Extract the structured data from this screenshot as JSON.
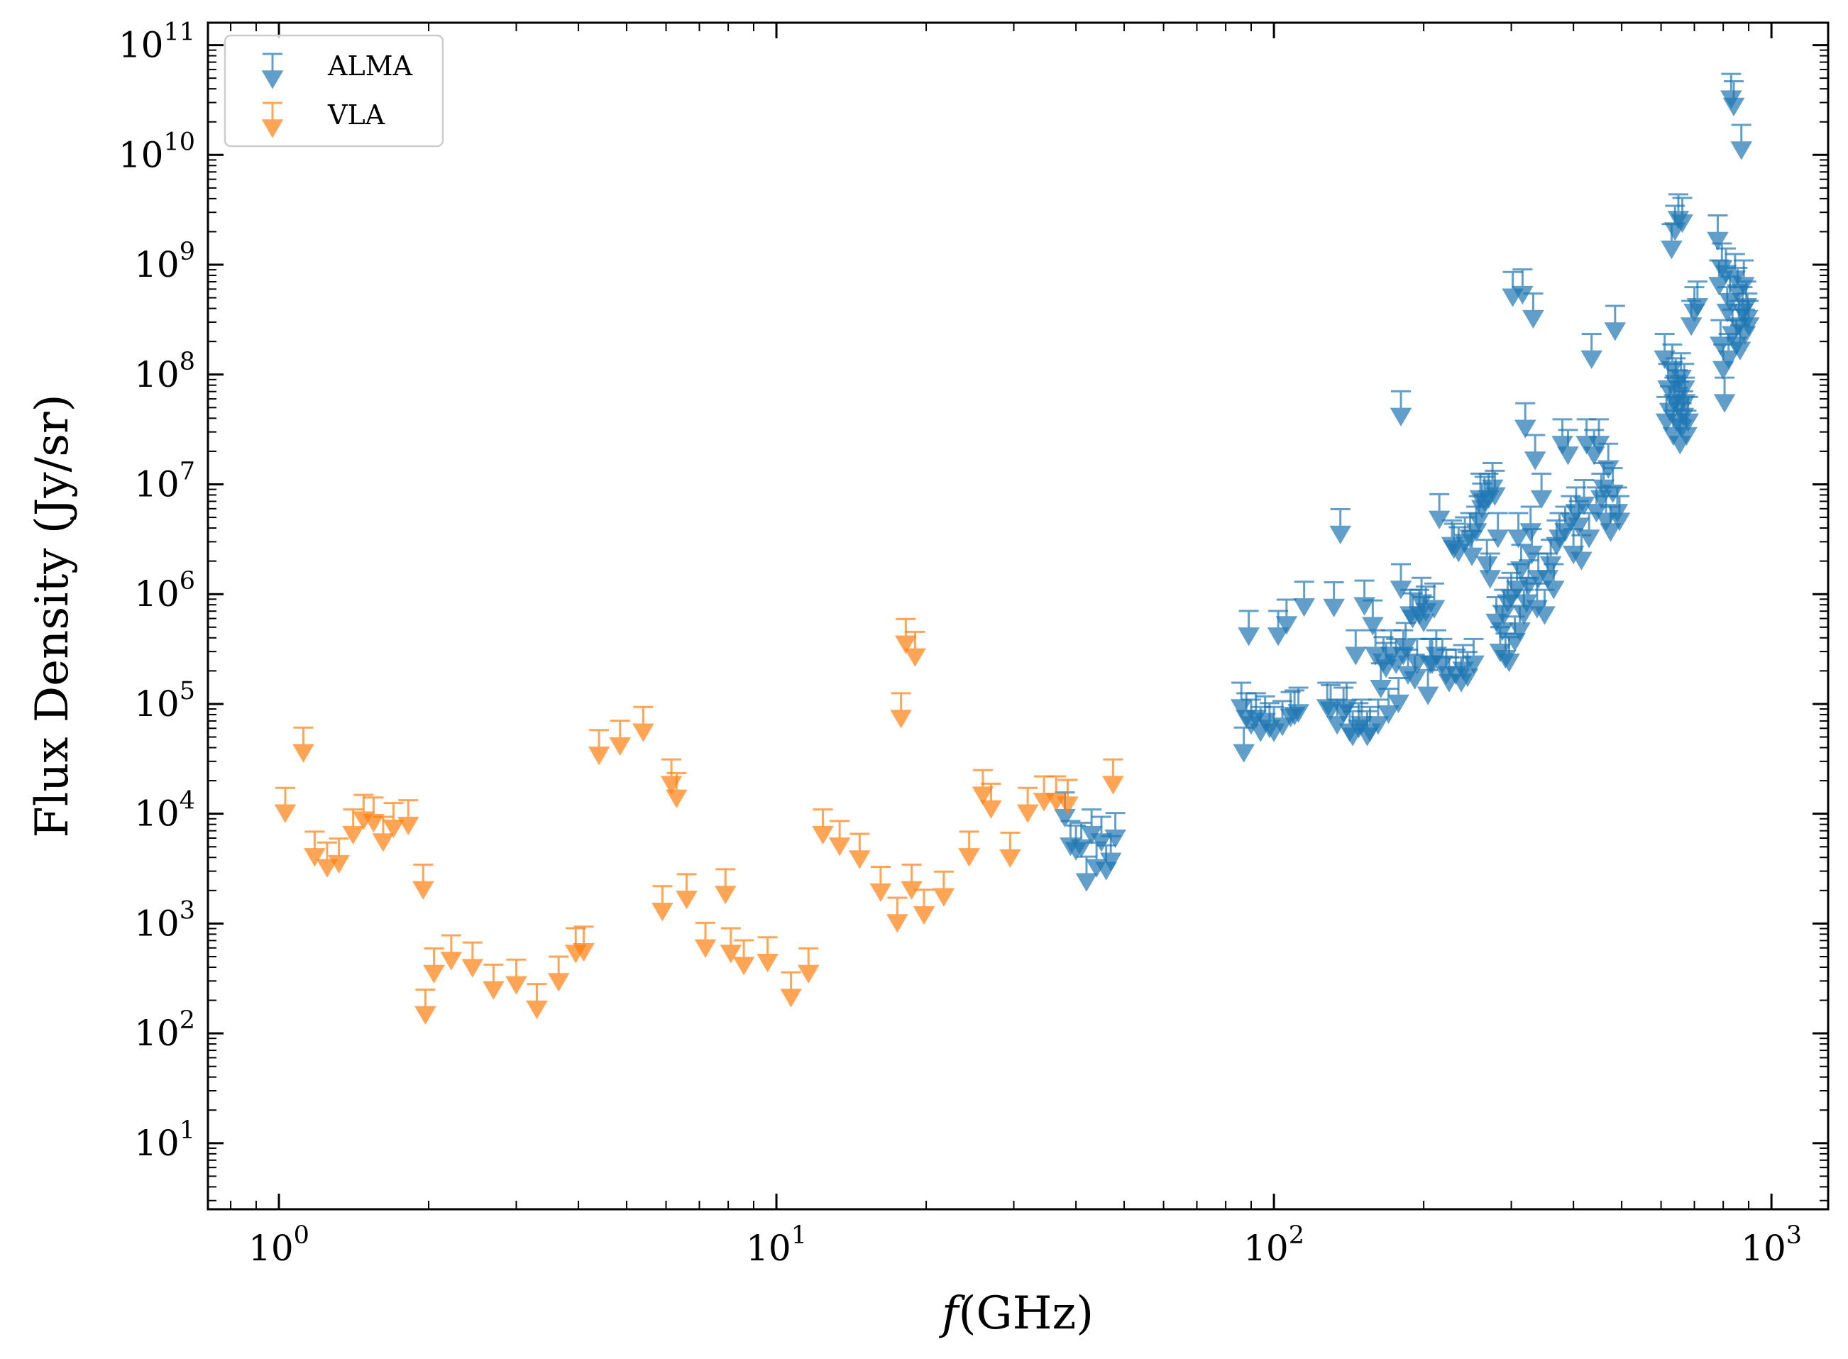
{
  "chart_data": {
    "type": "scatter",
    "marker": "upper-limit-arrow",
    "x_axis": {
      "label_italic": "f",
      "label_rest": "(GHz)",
      "scale": "log",
      "range": [
        0.72,
        1300
      ],
      "ticks": [
        1,
        10,
        100,
        1000
      ],
      "tick_labels": [
        {
          "base": "10",
          "exp": "0"
        },
        {
          "base": "10",
          "exp": "1"
        },
        {
          "base": "10",
          "exp": "2"
        },
        {
          "base": "10",
          "exp": "3"
        }
      ]
    },
    "y_axis": {
      "label": "Flux Density (Jy/sr)",
      "scale": "log",
      "range": [
        2.5,
        160000000000.0
      ],
      "ticks": [
        10,
        100,
        1000,
        10000,
        100000,
        1000000,
        10000000,
        100000000,
        1000000000,
        10000000000,
        100000000000
      ],
      "tick_labels": [
        {
          "base": "10",
          "exp": "1"
        },
        {
          "base": "10",
          "exp": "2"
        },
        {
          "base": "10",
          "exp": "3"
        },
        {
          "base": "10",
          "exp": "4"
        },
        {
          "base": "10",
          "exp": "5"
        },
        {
          "base": "10",
          "exp": "6"
        },
        {
          "base": "10",
          "exp": "7"
        },
        {
          "base": "10",
          "exp": "8"
        },
        {
          "base": "10",
          "exp": "9"
        },
        {
          "base": "10",
          "exp": "10"
        },
        {
          "base": "10",
          "exp": "11"
        }
      ]
    },
    "legend": {
      "position": "top-left"
    },
    "series": [
      {
        "name": "ALMA",
        "color": "#1f77b4",
        "points": [
          [
            38,
            10000
          ],
          [
            39,
            5500
          ],
          [
            40,
            5000
          ],
          [
            41,
            5300
          ],
          [
            42,
            2600
          ],
          [
            43,
            7000
          ],
          [
            44,
            3500
          ],
          [
            45,
            6000
          ],
          [
            46,
            3300
          ],
          [
            47,
            4000
          ],
          [
            48,
            6500
          ],
          [
            86,
            100000
          ],
          [
            87,
            39000
          ],
          [
            88,
            80000
          ],
          [
            89,
            450000
          ],
          [
            90,
            70000
          ],
          [
            92,
            80000
          ],
          [
            94,
            60000
          ],
          [
            96,
            75000
          ],
          [
            98,
            65000
          ],
          [
            100,
            60000
          ],
          [
            102,
            450000
          ],
          [
            104,
            68000
          ],
          [
            106,
            570000
          ],
          [
            108,
            82000
          ],
          [
            110,
            85000
          ],
          [
            112,
            90000
          ],
          [
            115,
            830000
          ],
          [
            128,
            100000
          ],
          [
            130,
            95000
          ],
          [
            132,
            820000
          ],
          [
            134,
            70000
          ],
          [
            136,
            3800000
          ],
          [
            138,
            90000
          ],
          [
            140,
            100000
          ],
          [
            142,
            60000
          ],
          [
            144,
            55000
          ],
          [
            146,
            300000
          ],
          [
            148,
            65000
          ],
          [
            150,
            70000
          ],
          [
            152,
            850000
          ],
          [
            154,
            55000
          ],
          [
            156,
            60000
          ],
          [
            158,
            560000
          ],
          [
            160,
            300000
          ],
          [
            162,
            70000
          ],
          [
            164,
            150000
          ],
          [
            166,
            260000
          ],
          [
            168,
            230000
          ],
          [
            170,
            88000
          ],
          [
            172,
            300000
          ],
          [
            176,
            250000
          ],
          [
            178,
            110000
          ],
          [
            180,
            1200000
          ],
          [
            180,
            45000000
          ],
          [
            182,
            300000
          ],
          [
            184,
            350000
          ],
          [
            186,
            200000
          ],
          [
            188,
            700000
          ],
          [
            190,
            650000
          ],
          [
            192,
            180000
          ],
          [
            194,
            250000
          ],
          [
            196,
            700000
          ],
          [
            198,
            900000
          ],
          [
            200,
            600000
          ],
          [
            202,
            750000
          ],
          [
            204,
            130000
          ],
          [
            206,
            250000
          ],
          [
            208,
            250000
          ],
          [
            210,
            800000
          ],
          [
            212,
            300000
          ],
          [
            215,
            5200000
          ],
          [
            218,
            250000
          ],
          [
            222,
            200000
          ],
          [
            225,
            170000
          ],
          [
            228,
            3000000
          ],
          [
            230,
            2800000
          ],
          [
            232,
            200000
          ],
          [
            235,
            2600000
          ],
          [
            238,
            170000
          ],
          [
            240,
            220000
          ],
          [
            242,
            3200000
          ],
          [
            245,
            190000
          ],
          [
            248,
            3500000
          ],
          [
            250,
            2400000
          ],
          [
            252,
            250000
          ],
          [
            255,
            4000000
          ],
          [
            258,
            5000000
          ],
          [
            260,
            8000000
          ],
          [
            262,
            6500000
          ],
          [
            265,
            7500000
          ],
          [
            268,
            2000000
          ],
          [
            270,
            8000000
          ],
          [
            272,
            1500000
          ],
          [
            275,
            10000000
          ],
          [
            278,
            8500000
          ],
          [
            280,
            600000
          ],
          [
            282,
            3500000
          ],
          [
            285,
            320000
          ],
          [
            288,
            500000
          ],
          [
            290,
            700000
          ],
          [
            292,
            280000
          ],
          [
            295,
            900000
          ],
          [
            297,
            260000
          ],
          [
            300,
            1000000
          ],
          [
            302,
            550000000
          ],
          [
            305,
            400000
          ],
          [
            308,
            1200000
          ],
          [
            310,
            3500000
          ],
          [
            312,
            500000
          ],
          [
            314,
            1800000
          ],
          [
            316,
            580000000
          ],
          [
            318,
            700000
          ],
          [
            320,
            35000000
          ],
          [
            322,
            900000
          ],
          [
            325,
            1300000
          ],
          [
            328,
            4000000
          ],
          [
            330,
            2500000
          ],
          [
            332,
            350000000
          ],
          [
            335,
            18000000
          ],
          [
            338,
            800000
          ],
          [
            340,
            1500000
          ],
          [
            345,
            8000000
          ],
          [
            350,
            700000
          ],
          [
            355,
            1500000
          ],
          [
            360,
            2000000
          ],
          [
            365,
            1200000
          ],
          [
            370,
            3000000
          ],
          [
            375,
            3500000
          ],
          [
            380,
            25000000
          ],
          [
            385,
            4000000
          ],
          [
            390,
            20000000
          ],
          [
            395,
            5000000
          ],
          [
            400,
            2500000
          ],
          [
            405,
            6000000
          ],
          [
            410,
            4500000
          ],
          [
            415,
            2200000
          ],
          [
            420,
            7000000
          ],
          [
            425,
            25000000
          ],
          [
            430,
            3500000
          ],
          [
            435,
            150000000
          ],
          [
            440,
            20000000
          ],
          [
            445,
            6000000
          ],
          [
            450,
            25000000
          ],
          [
            455,
            8000000
          ],
          [
            460,
            10000000
          ],
          [
            465,
            5000000
          ],
          [
            470,
            15000000
          ],
          [
            475,
            4000000
          ],
          [
            480,
            9000000
          ],
          [
            485,
            270000000
          ],
          [
            490,
            6000000
          ],
          [
            495,
            5000000
          ],
          [
            610,
            150000000
          ],
          [
            615,
            40000000
          ],
          [
            620,
            80000000
          ],
          [
            625,
            50000000
          ],
          [
            630,
            1500000000
          ],
          [
            632,
            120000000
          ],
          [
            635,
            30000000
          ],
          [
            638,
            60000000
          ],
          [
            640,
            2200000000
          ],
          [
            642,
            90000000
          ],
          [
            645,
            40000000
          ],
          [
            648,
            70000000
          ],
          [
            650,
            2800000000
          ],
          [
            652,
            55000000
          ],
          [
            655,
            25000000
          ],
          [
            658,
            100000000
          ],
          [
            660,
            35000000
          ],
          [
            662,
            2600000000
          ],
          [
            665,
            45000000
          ],
          [
            668,
            80000000
          ],
          [
            670,
            60000000
          ],
          [
            675,
            30000000
          ],
          [
            680,
            40000000
          ],
          [
            690,
            300000000
          ],
          [
            700,
            400000000
          ],
          [
            710,
            450000000
          ],
          [
            780,
            1800000000
          ],
          [
            785,
            700000000
          ],
          [
            790,
            200000000
          ],
          [
            795,
            1000000000
          ],
          [
            800,
            120000000
          ],
          [
            805,
            60000000
          ],
          [
            810,
            900000000
          ],
          [
            815,
            400000000
          ],
          [
            820,
            150000000
          ],
          [
            825,
            500000000
          ],
          [
            830,
            35000000000
          ],
          [
            835,
            250000000
          ],
          [
            840,
            30000000000
          ],
          [
            845,
            800000000
          ],
          [
            850,
            200000000
          ],
          [
            855,
            600000000
          ],
          [
            860,
            300000000
          ],
          [
            865,
            180000000
          ],
          [
            870,
            12000000000
          ],
          [
            875,
            400000000
          ],
          [
            880,
            700000000
          ],
          [
            885,
            250000000
          ],
          [
            890,
            450000000
          ],
          [
            895,
            350000000
          ],
          [
            900,
            300000000
          ]
        ]
      },
      {
        "name": "VLA",
        "color": "#ff7f0e",
        "points": [
          [
            1.03,
            11000
          ],
          [
            1.12,
            39000
          ],
          [
            1.18,
            4400
          ],
          [
            1.25,
            3500
          ],
          [
            1.32,
            3800
          ],
          [
            1.41,
            7000
          ],
          [
            1.48,
            9500
          ],
          [
            1.55,
            9000
          ],
          [
            1.62,
            6000
          ],
          [
            1.7,
            8000
          ],
          [
            1.82,
            8500
          ],
          [
            1.95,
            2200
          ],
          [
            1.97,
            160
          ],
          [
            2.05,
            380
          ],
          [
            2.22,
            500
          ],
          [
            2.45,
            430
          ],
          [
            2.7,
            270
          ],
          [
            3.0,
            300
          ],
          [
            3.3,
            180
          ],
          [
            3.65,
            320
          ],
          [
            3.95,
            580
          ],
          [
            4.1,
            600
          ],
          [
            4.4,
            37000
          ],
          [
            4.85,
            45000
          ],
          [
            5.4,
            60000
          ],
          [
            5.9,
            1400
          ],
          [
            6.15,
            20000
          ],
          [
            6.3,
            15000
          ],
          [
            6.6,
            1800
          ],
          [
            7.2,
            650
          ],
          [
            7.9,
            2000
          ],
          [
            8.1,
            580
          ],
          [
            8.6,
            450
          ],
          [
            9.6,
            480
          ],
          [
            10.7,
            230
          ],
          [
            11.6,
            380
          ],
          [
            12.4,
            7000
          ],
          [
            13.4,
            5500
          ],
          [
            14.7,
            4200
          ],
          [
            16.2,
            2100
          ],
          [
            17.5,
            1100
          ],
          [
            17.8,
            80000
          ],
          [
            18.2,
            380000
          ],
          [
            18.7,
            2200
          ],
          [
            19.0,
            290000
          ],
          [
            19.8,
            1300
          ],
          [
            21.7,
            1900
          ],
          [
            24.4,
            4400
          ],
          [
            26.0,
            16000
          ],
          [
            27.0,
            12000
          ],
          [
            29.5,
            4300
          ],
          [
            32.0,
            11000
          ],
          [
            34.5,
            14000
          ],
          [
            36.5,
            14000
          ],
          [
            38.5,
            13000
          ],
          [
            47.5,
            20000
          ]
        ]
      }
    ]
  }
}
